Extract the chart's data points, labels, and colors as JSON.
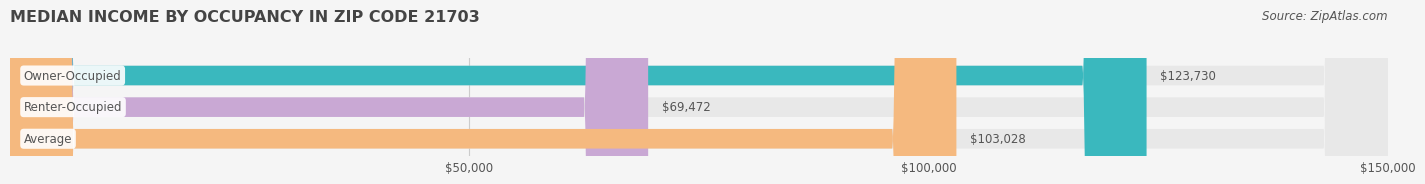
{
  "title": "MEDIAN INCOME BY OCCUPANCY IN ZIP CODE 21703",
  "source": "Source: ZipAtlas.com",
  "categories": [
    "Owner-Occupied",
    "Renter-Occupied",
    "Average"
  ],
  "values": [
    123730,
    69472,
    103028
  ],
  "bar_colors": [
    "#3ab8be",
    "#c9a8d4",
    "#f5b97f"
  ],
  "bar_bg_color": "#e8e8e8",
  "value_labels": [
    "$123,730",
    "$69,472",
    "$103,028"
  ],
  "xlim": [
    0,
    150000
  ],
  "xticks": [
    0,
    50000,
    100000,
    150000
  ],
  "xtick_labels": [
    "",
    "$50,000",
    "$100,000",
    "$150,000"
  ],
  "title_fontsize": 11.5,
  "label_fontsize": 8.5,
  "tick_fontsize": 8.5,
  "source_fontsize": 8.5,
  "bar_height": 0.62,
  "bg_color": "#f5f5f5",
  "text_color": "#555555",
  "title_color": "#444444"
}
